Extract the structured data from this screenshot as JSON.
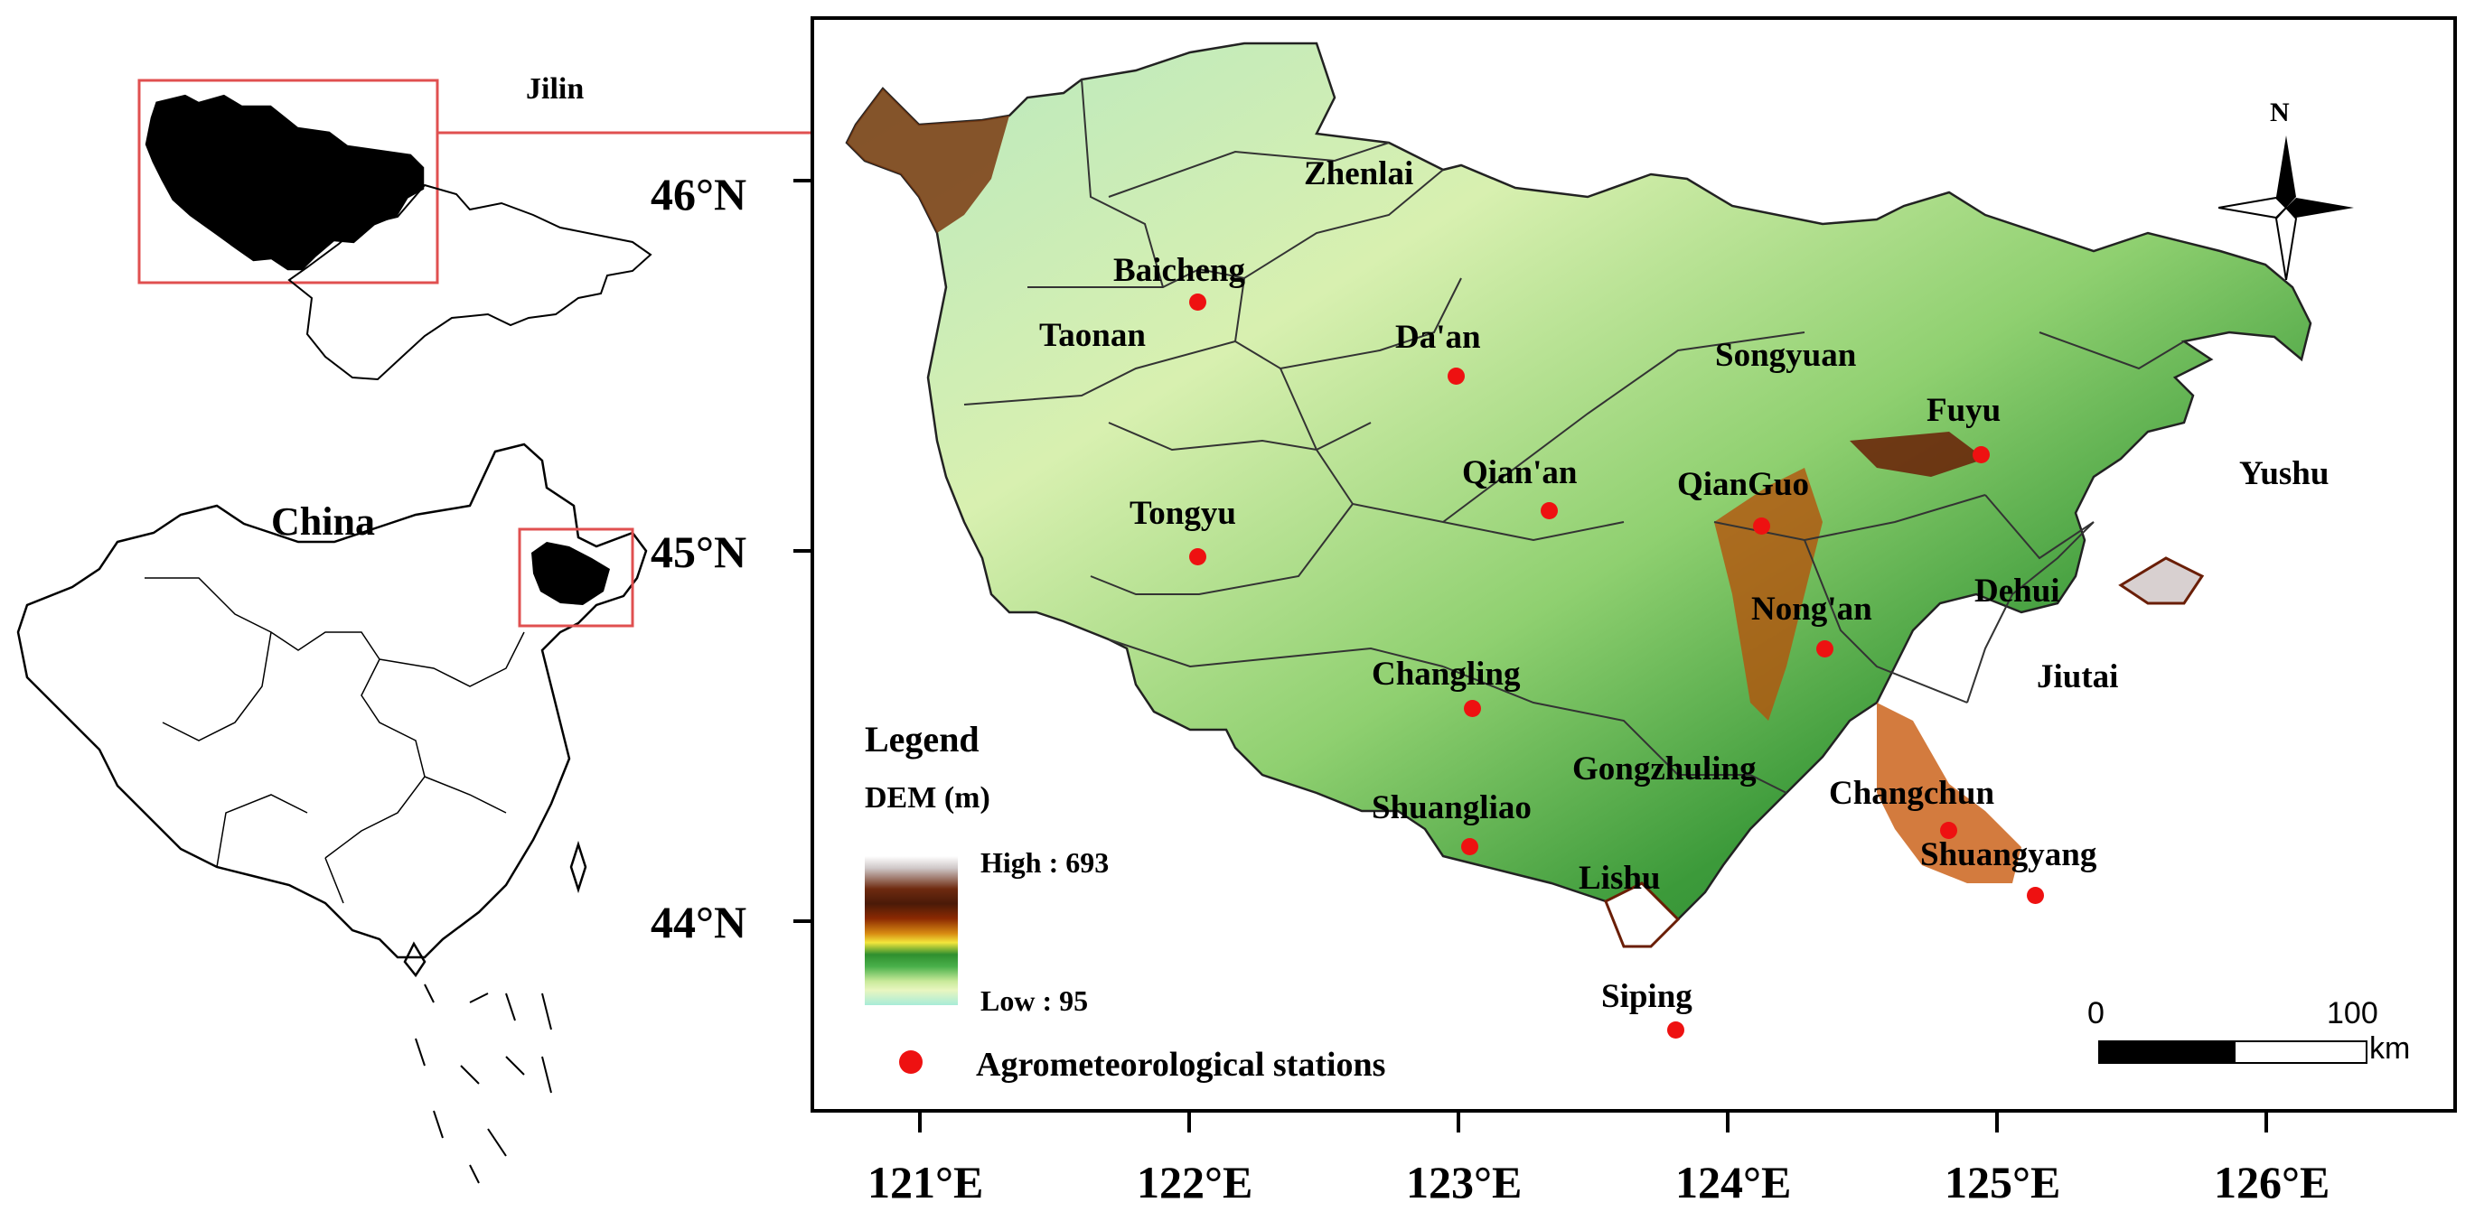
{
  "inset_top": {
    "label": "Jilin"
  },
  "inset_bottom": {
    "label": "China"
  },
  "latitude_labels": [
    "46°N",
    "45°N",
    "44°N"
  ],
  "longitude_labels": [
    "121°E",
    "122°E",
    "123°E",
    "124°E",
    "125°E",
    "126°E"
  ],
  "north_arrow": {
    "label": "N",
    "icon": "north-arrow-icon"
  },
  "cities": [
    {
      "name": "Zhenlai"
    },
    {
      "name": "Baicheng"
    },
    {
      "name": "Taonan"
    },
    {
      "name": "Da'an"
    },
    {
      "name": "Songyuan"
    },
    {
      "name": "Fuyu"
    },
    {
      "name": "Yushu"
    },
    {
      "name": "Qian'an"
    },
    {
      "name": "QianGuo"
    },
    {
      "name": "Tongyu"
    },
    {
      "name": "Nong'an"
    },
    {
      "name": "Dehui"
    },
    {
      "name": "Jiutai"
    },
    {
      "name": "Changling"
    },
    {
      "name": "Gongzhuling"
    },
    {
      "name": "Changchun"
    },
    {
      "name": "Shuangliao"
    },
    {
      "name": "Shuangyang"
    },
    {
      "name": "Lishu"
    },
    {
      "name": "Siping"
    }
  ],
  "legend": {
    "title": "Legend",
    "dem_title": "DEM (m)",
    "high": "High : 693",
    "low": "Low : 95",
    "stations_label": "Agrometeorological stations",
    "station_color": "#ee1111"
  },
  "scale_bar": {
    "start": "0",
    "end": "100",
    "unit": "km"
  },
  "colors": {
    "station": "#ee1111",
    "inset_box": "#e05050"
  }
}
